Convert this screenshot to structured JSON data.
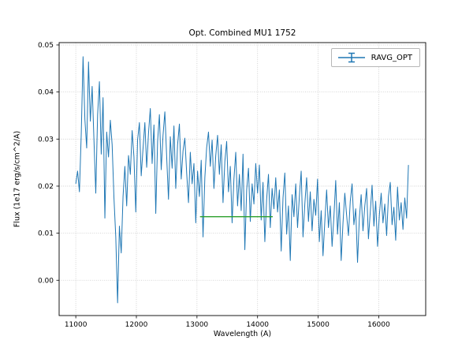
{
  "chart_data": {
    "type": "line",
    "title": "Opt. Combined MU1 1752",
    "xlabel": "Wavelength (A)",
    "ylabel": "Flux (1e17 erg/s/cm^2/A)",
    "xlim": [
      10725,
      16775
    ],
    "ylim": [
      -0.0075,
      0.0505
    ],
    "xticks": [
      11000,
      12000,
      13000,
      14000,
      15000,
      16000
    ],
    "yticks": [
      0.0,
      0.01,
      0.02,
      0.03,
      0.04,
      0.05
    ],
    "grid": true,
    "grid_color": "#c8c8c8",
    "legend": {
      "position": "upper right",
      "entries": [
        {
          "label": "RAVG_OPT",
          "color": "#1f77b4",
          "marker": "errorbar"
        }
      ]
    },
    "series": [
      {
        "name": "RAVG_OPT",
        "color": "#1f77b4",
        "x_start": 11000,
        "x_step": 30,
        "y": [
          0.0205,
          0.0232,
          0.0188,
          0.031,
          0.0475,
          0.0342,
          0.0281,
          0.0464,
          0.0338,
          0.0412,
          0.0298,
          0.0185,
          0.0352,
          0.0422,
          0.0268,
          0.0388,
          0.0132,
          0.0315,
          0.0262,
          0.034,
          0.0288,
          0.0175,
          0.0092,
          -0.0048,
          0.0115,
          0.0058,
          0.0178,
          0.0242,
          0.0158,
          0.0265,
          0.0225,
          0.0318,
          0.0262,
          0.0145,
          0.0298,
          0.0335,
          0.0222,
          0.028,
          0.0335,
          0.024,
          0.0312,
          0.0365,
          0.0248,
          0.033,
          0.0142,
          0.0295,
          0.0352,
          0.0235,
          0.0308,
          0.0358,
          0.0262,
          0.0172,
          0.0305,
          0.0238,
          0.0328,
          0.0195,
          0.0288,
          0.0332,
          0.0215,
          0.0275,
          0.0302,
          0.0228,
          0.0165,
          0.0272,
          0.0205,
          0.0248,
          0.0122,
          0.0232,
          0.0178,
          0.0255,
          0.0092,
          0.0218,
          0.0282,
          0.0315,
          0.0242,
          0.0298,
          0.0195,
          0.0265,
          0.0308,
          0.0225,
          0.0288,
          0.0165,
          0.0252,
          0.0295,
          0.0188,
          0.0242,
          0.0122,
          0.0215,
          0.0272,
          0.0158,
          0.0225,
          0.0148,
          0.0268,
          0.0065,
          0.0192,
          0.0238,
          0.0125,
          0.0205,
          0.0162,
          0.0248,
          0.0185,
          0.0245,
          0.0128,
          0.0208,
          0.0082,
          0.0172,
          0.0225,
          0.0112,
          0.0195,
          0.0152,
          0.0218,
          0.0145,
          0.0192,
          0.0062,
          0.0175,
          0.0228,
          0.0098,
          0.0158,
          0.0042,
          0.0182,
          0.0135,
          0.0205,
          0.0112,
          0.0178,
          0.0232,
          0.0092,
          0.0162,
          0.0218,
          0.0125,
          0.0188,
          0.0105,
          0.0172,
          0.0138,
          0.0215,
          0.0082,
          0.0148,
          0.0052,
          0.0125,
          0.0192,
          0.0112,
          0.0158,
          0.0072,
          0.0135,
          0.0212,
          0.0098,
          0.0165,
          0.0042,
          0.0122,
          0.0185,
          0.0138,
          0.0095,
          0.0168,
          0.0205,
          0.0118,
          0.0152,
          0.0038,
          0.0132,
          0.0182,
          0.0105,
          0.0158,
          0.0195,
          0.0088,
          0.0145,
          0.0202,
          0.0115,
          0.0168,
          0.0072,
          0.0138,
          0.0185,
          0.0122,
          0.0162,
          0.0095,
          0.0178,
          0.0208,
          0.0118,
          0.0155,
          0.0085,
          0.0198,
          0.0128,
          0.0165,
          0.0108,
          0.0175,
          0.0132,
          0.0245
        ]
      },
      {
        "name": "overlay-segment",
        "color": "#2ca02c",
        "points": [
          [
            13050,
            0.0135
          ],
          [
            14250,
            0.0135
          ]
        ]
      }
    ]
  }
}
